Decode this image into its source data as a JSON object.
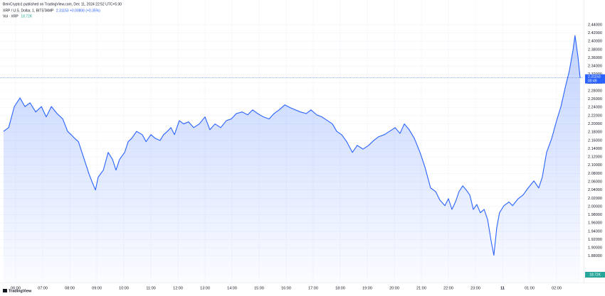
{
  "chart_data": {
    "type": "area",
    "publisher": "BeinCrypto1 published on TradingView.com, Dec 11, 2024 22:52 UTC+5:30",
    "quote": "2.31153 +0.00806 (+0.35%)",
    "volume_label": "Vol · XRP",
    "volume_value": "18.72K",
    "brand": "TradingView",
    "last_price": {
      "value": 2.31153,
      "label": "2.31153"
    },
    "countdown": "00:49",
    "x": [
      5.55,
      5.74,
      5.95,
      6.16,
      6.34,
      6.53,
      6.74,
      6.95,
      7.13,
      7.32,
      7.53,
      7.74,
      7.92,
      8.05,
      8.18,
      8.32,
      8.45,
      8.58,
      8.71,
      8.84,
      8.95,
      9.05,
      9.24,
      9.42,
      9.58,
      9.71,
      9.84,
      10.03,
      10.16,
      10.29,
      10.47,
      10.68,
      10.82,
      11.0,
      11.16,
      11.34,
      11.47,
      11.61,
      11.74,
      11.87,
      12.05,
      12.21,
      12.39,
      12.58,
      12.79,
      13.0,
      13.18,
      13.37,
      13.58,
      13.79,
      13.97,
      14.16,
      14.37,
      14.58,
      14.76,
      14.95,
      15.16,
      15.37,
      15.55,
      15.74,
      15.95,
      16.16,
      16.34,
      16.53,
      16.74,
      16.92,
      17.13,
      17.32,
      17.53,
      17.71,
      17.87,
      18.05,
      18.24,
      18.45,
      18.63,
      18.84,
      19.05,
      19.24,
      19.42,
      19.63,
      19.82,
      20.03,
      20.21,
      20.37,
      20.55,
      20.74,
      20.95,
      21.13,
      21.34,
      21.53,
      21.68,
      21.87,
      22.0,
      22.13,
      22.26,
      22.39,
      22.53,
      22.66,
      22.79,
      22.92,
      23.05,
      23.18,
      23.32,
      23.45,
      23.58,
      23.68,
      23.79,
      23.89,
      24.05,
      24.24,
      24.37,
      24.58,
      24.76,
      24.95,
      25.16,
      25.34,
      25.47,
      25.63,
      25.82,
      26.0,
      26.16,
      26.34,
      26.47,
      26.61,
      26.68,
      26.79,
      26.87
    ],
    "series": [
      {
        "name": "XRP / U.S. Dollar, 1, BITSTAMP",
        "color": "#2962ff",
        "values": [
          2.182,
          2.191,
          2.242,
          2.263,
          2.242,
          2.251,
          2.229,
          2.242,
          2.217,
          2.242,
          2.225,
          2.212,
          2.182,
          2.174,
          2.165,
          2.157,
          2.131,
          2.105,
          2.079,
          2.057,
          2.04,
          2.071,
          2.088,
          2.131,
          2.114,
          2.088,
          2.114,
          2.131,
          2.157,
          2.165,
          2.182,
          2.174,
          2.157,
          2.174,
          2.165,
          2.16,
          2.174,
          2.182,
          2.191,
          2.174,
          2.208,
          2.2,
          2.205,
          2.191,
          2.2,
          2.217,
          2.186,
          2.2,
          2.191,
          2.208,
          2.212,
          2.225,
          2.229,
          2.222,
          2.234,
          2.225,
          2.217,
          2.212,
          2.225,
          2.234,
          2.246,
          2.239,
          2.234,
          2.229,
          2.225,
          2.234,
          2.222,
          2.217,
          2.208,
          2.2,
          2.182,
          2.174,
          2.157,
          2.131,
          2.148,
          2.139,
          2.148,
          2.16,
          2.169,
          2.174,
          2.182,
          2.191,
          2.177,
          2.2,
          2.186,
          2.165,
          2.131,
          2.096,
          2.045,
          2.036,
          2.016,
          2.002,
          2.019,
          1.993,
          2.011,
          2.036,
          2.05,
          2.04,
          2.028,
          1.993,
          2.005,
          1.985,
          1.993,
          1.968,
          1.916,
          1.882,
          1.95,
          1.985,
          2.002,
          2.011,
          2.002,
          2.019,
          2.028,
          2.045,
          2.062,
          2.045,
          2.071,
          2.131,
          2.165,
          2.208,
          2.242,
          2.294,
          2.328,
          2.38,
          2.414,
          2.363,
          2.311
        ]
      }
    ],
    "xlim": [
      5.42,
      27.0
    ],
    "ylim": [
      1.816,
      2.5
    ],
    "xticks": [
      {
        "value": 6,
        "label": "06:00"
      },
      {
        "value": 7,
        "label": "07:00"
      },
      {
        "value": 8,
        "label": "08:00"
      },
      {
        "value": 9,
        "label": "09:00"
      },
      {
        "value": 10,
        "label": "10:00"
      },
      {
        "value": 11,
        "label": "11:00"
      },
      {
        "value": 12,
        "label": "12:00"
      },
      {
        "value": 13,
        "label": "13:00"
      },
      {
        "value": 14,
        "label": "14:00"
      },
      {
        "value": 15,
        "label": "15:00"
      },
      {
        "value": 16,
        "label": "16:00"
      },
      {
        "value": 17,
        "label": "17:00"
      },
      {
        "value": 18,
        "label": "18:00"
      },
      {
        "value": 19,
        "label": "19:00"
      },
      {
        "value": 20,
        "label": "20:00"
      },
      {
        "value": 21,
        "label": "21:00"
      },
      {
        "value": 22,
        "label": "22:00"
      },
      {
        "value": 23,
        "label": "23:00"
      },
      {
        "value": 24,
        "label": "11"
      },
      {
        "value": 25,
        "label": "01:00"
      },
      {
        "value": 26,
        "label": "02:00"
      }
    ],
    "yticks": [
      {
        "value": 1.88,
        "label": "1.88000"
      },
      {
        "value": 1.9,
        "label": "1.90000"
      },
      {
        "value": 1.92,
        "label": "1.92000"
      },
      {
        "value": 1.94,
        "label": "1.94000"
      },
      {
        "value": 1.96,
        "label": "1.96000"
      },
      {
        "value": 1.98,
        "label": "1.98000"
      },
      {
        "value": 2.0,
        "label": "2.00000"
      },
      {
        "value": 2.02,
        "label": "2.02000"
      },
      {
        "value": 2.04,
        "label": "2.04000"
      },
      {
        "value": 2.06,
        "label": "2.06000"
      },
      {
        "value": 2.08,
        "label": "2.08000"
      },
      {
        "value": 2.1,
        "label": "2.10000"
      },
      {
        "value": 2.12,
        "label": "2.12000"
      },
      {
        "value": 2.14,
        "label": "2.14000"
      },
      {
        "value": 2.16,
        "label": "2.16000"
      },
      {
        "value": 2.18,
        "label": "2.18000"
      },
      {
        "value": 2.2,
        "label": "2.20000"
      },
      {
        "value": 2.22,
        "label": "2.22000"
      },
      {
        "value": 2.24,
        "label": "2.24000"
      },
      {
        "value": 2.26,
        "label": "2.26000"
      },
      {
        "value": 2.28,
        "label": "2.28000"
      },
      {
        "value": 2.3,
        "label": "2.30000"
      },
      {
        "value": 2.32,
        "label": "2.32000"
      },
      {
        "value": 2.34,
        "label": "2.34000"
      },
      {
        "value": 2.36,
        "label": "2.36000"
      },
      {
        "value": 2.38,
        "label": "2.38000"
      },
      {
        "value": 2.4,
        "label": "2.40000"
      },
      {
        "value": 2.42,
        "label": "2.42000"
      },
      {
        "value": 2.44,
        "label": "2.44000"
      }
    ],
    "grid": true
  }
}
